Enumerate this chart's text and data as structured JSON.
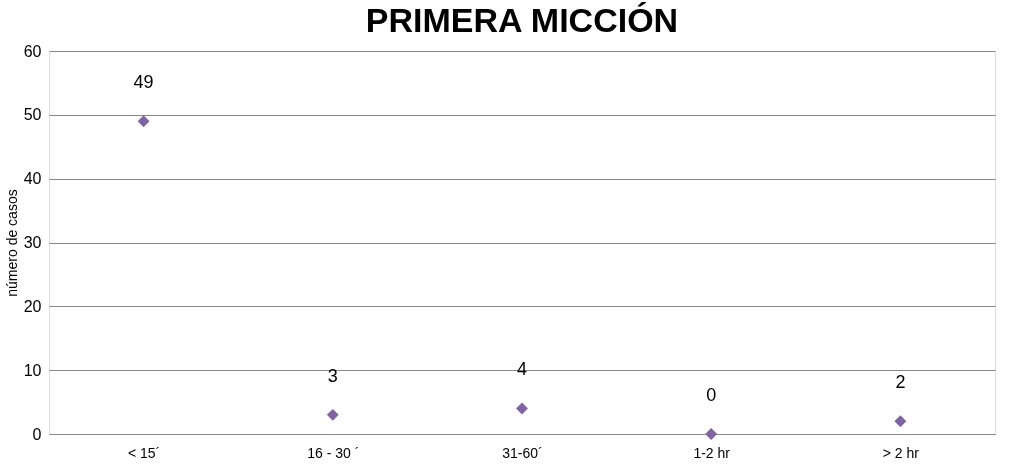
{
  "chart_data": {
    "type": "scatter",
    "title": "PRIMERA MICCIÓN",
    "ylabel": "número de casos",
    "categories": [
      "< 15´",
      "16 - 30 ´",
      "31-60´",
      "1-2 hr",
      "> 2 hr"
    ],
    "values": [
      49,
      3,
      4,
      0,
      2
    ],
    "color": "#8064a2",
    "marker": "diamond",
    "data_labels": true,
    "ylim": [
      0,
      60
    ],
    "yticks": [
      0,
      10,
      20,
      30,
      40,
      50,
      60
    ],
    "grid": "y"
  }
}
